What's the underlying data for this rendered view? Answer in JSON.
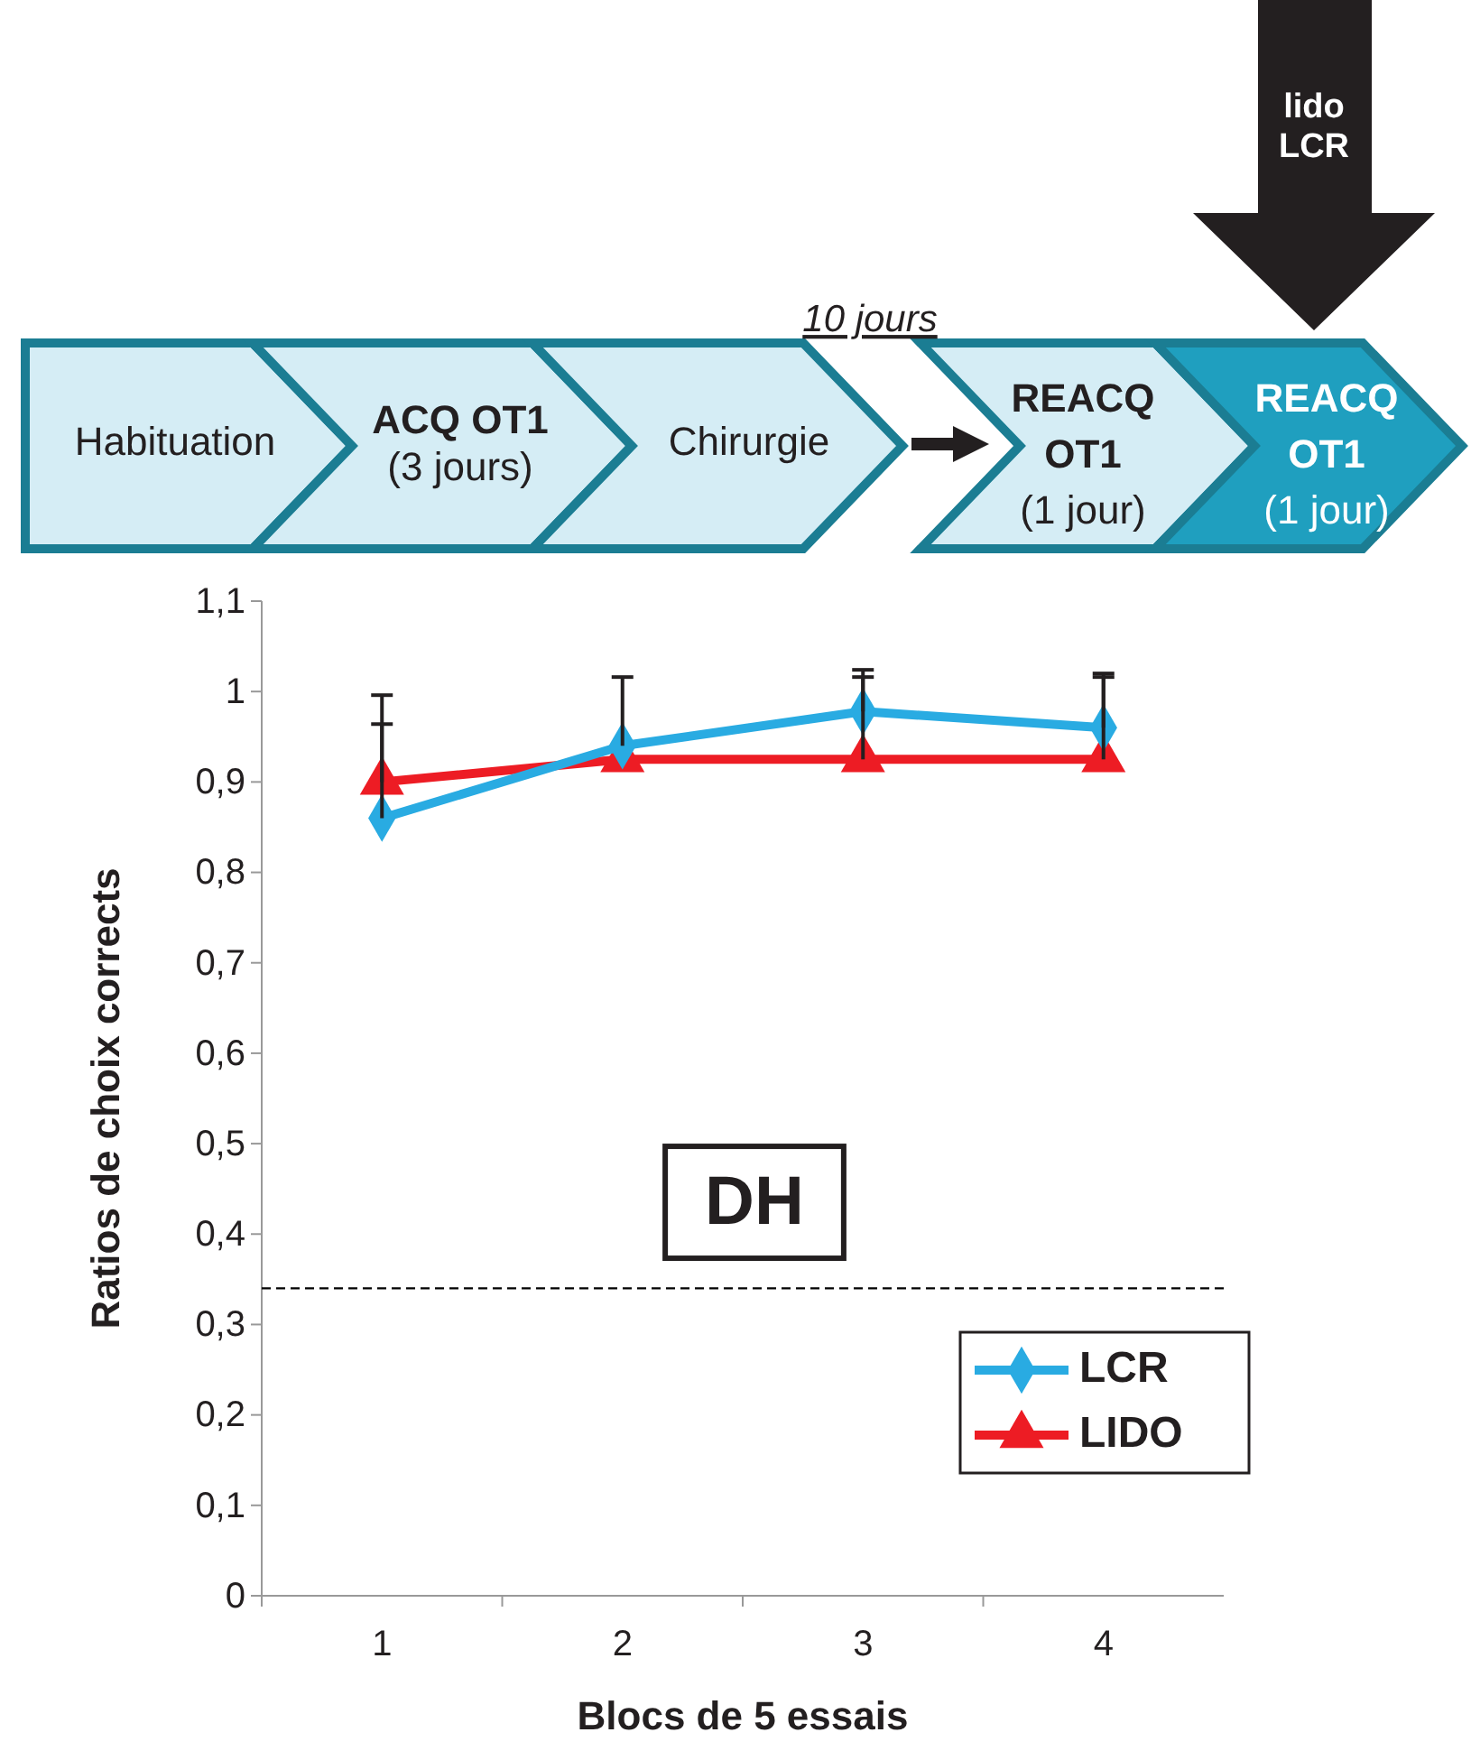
{
  "chart_data": {
    "type": "line",
    "xlabel": "Blocs de 5 essais",
    "ylabel": "Ratios de choix corrects",
    "categories": [
      "1",
      "2",
      "3",
      "4"
    ],
    "series": [
      {
        "name": "LCR",
        "color": "#29abe2",
        "marker": "diamond",
        "values": [
          0.86,
          0.94,
          0.978,
          0.96
        ],
        "errors": [
          [
            0.86,
            0.996
          ],
          [
            0.94,
            1.016
          ],
          [
            0.978,
            1.024
          ],
          [
            0.96,
            1.02
          ]
        ]
      },
      {
        "name": "LIDO",
        "color": "#ed1c24",
        "marker": "triangle",
        "values": [
          0.9,
          0.925,
          0.925,
          0.925
        ],
        "errors": [
          [
            0.9,
            0.964
          ],
          null,
          [
            0.925,
            1.016
          ],
          [
            0.925,
            1.016
          ]
        ]
      }
    ],
    "ylim": [
      0,
      1.1
    ],
    "yticks": [
      0,
      {
        "value": 0.1,
        "label": "0,1"
      },
      {
        "value": 0.2,
        "label": "0,2"
      },
      {
        "value": 0.3,
        "label": "0,3"
      },
      {
        "value": 0.4,
        "label": "0,4"
      },
      {
        "value": 0.5,
        "label": "0,5"
      },
      {
        "value": 0.6,
        "label": "0,6"
      },
      {
        "value": 0.7,
        "label": "0,7"
      },
      {
        "value": 0.8,
        "label": "0,8"
      },
      {
        "value": 0.9,
        "label": "0,9"
      },
      1,
      {
        "value": 1.1,
        "label": "1,1"
      }
    ],
    "ref_lines": [
      {
        "axis": "y",
        "value": 0.34,
        "color": "#000000",
        "line_style": "dashed"
      }
    ],
    "legend": "bottom right",
    "grid": false,
    "line_style": "solid",
    "annotations": [
      "Habituation",
      "ACQ OT1\n(3 jours)",
      "Chirurgie",
      "10 jours",
      "REACQ\nOT1\n(1 jour)",
      "REACQ\nOT1\n(1 jour)",
      "lido\nLCR",
      "DH"
    ]
  }
}
